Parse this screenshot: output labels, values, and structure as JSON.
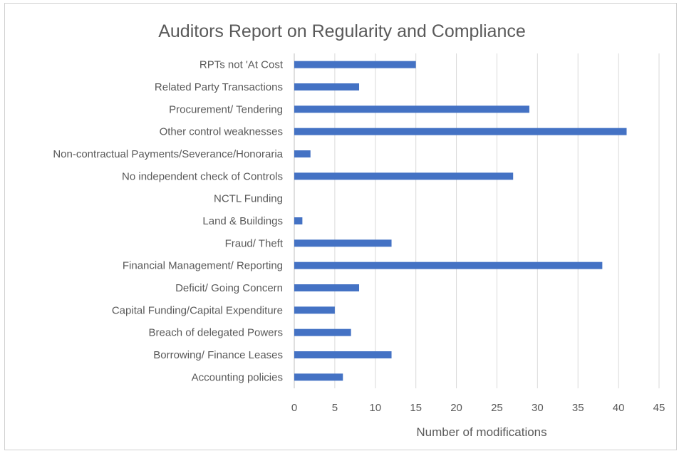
{
  "chart_data": {
    "type": "bar",
    "orientation": "horizontal",
    "title": "Auditors Report on Regularity and Compliance",
    "xlabel": "Number of modifications",
    "ylabel": "",
    "xlim": [
      0,
      45
    ],
    "xticks": [
      0,
      5,
      10,
      15,
      20,
      25,
      30,
      35,
      40,
      45
    ],
    "grid": "vertical",
    "bar_color": "#4472C4",
    "categories": [
      "RPTs not 'At Cost",
      "Related Party Transactions",
      "Procurement/ Tendering",
      "Other control weaknesses",
      "Non-contractual Payments/Severance/Honoraria",
      "No independent check of Controls",
      "NCTL Funding",
      "Land & Buildings",
      "Fraud/ Theft",
      "Financial Management/ Reporting",
      "Deficit/ Going Concern",
      "Capital Funding/Capital Expenditure",
      "Breach of delegated Powers",
      "Borrowing/ Finance Leases",
      "Accounting policies"
    ],
    "values": [
      15,
      8,
      29,
      41,
      2,
      27,
      0,
      1,
      12,
      38,
      8,
      5,
      7,
      12,
      6
    ]
  }
}
